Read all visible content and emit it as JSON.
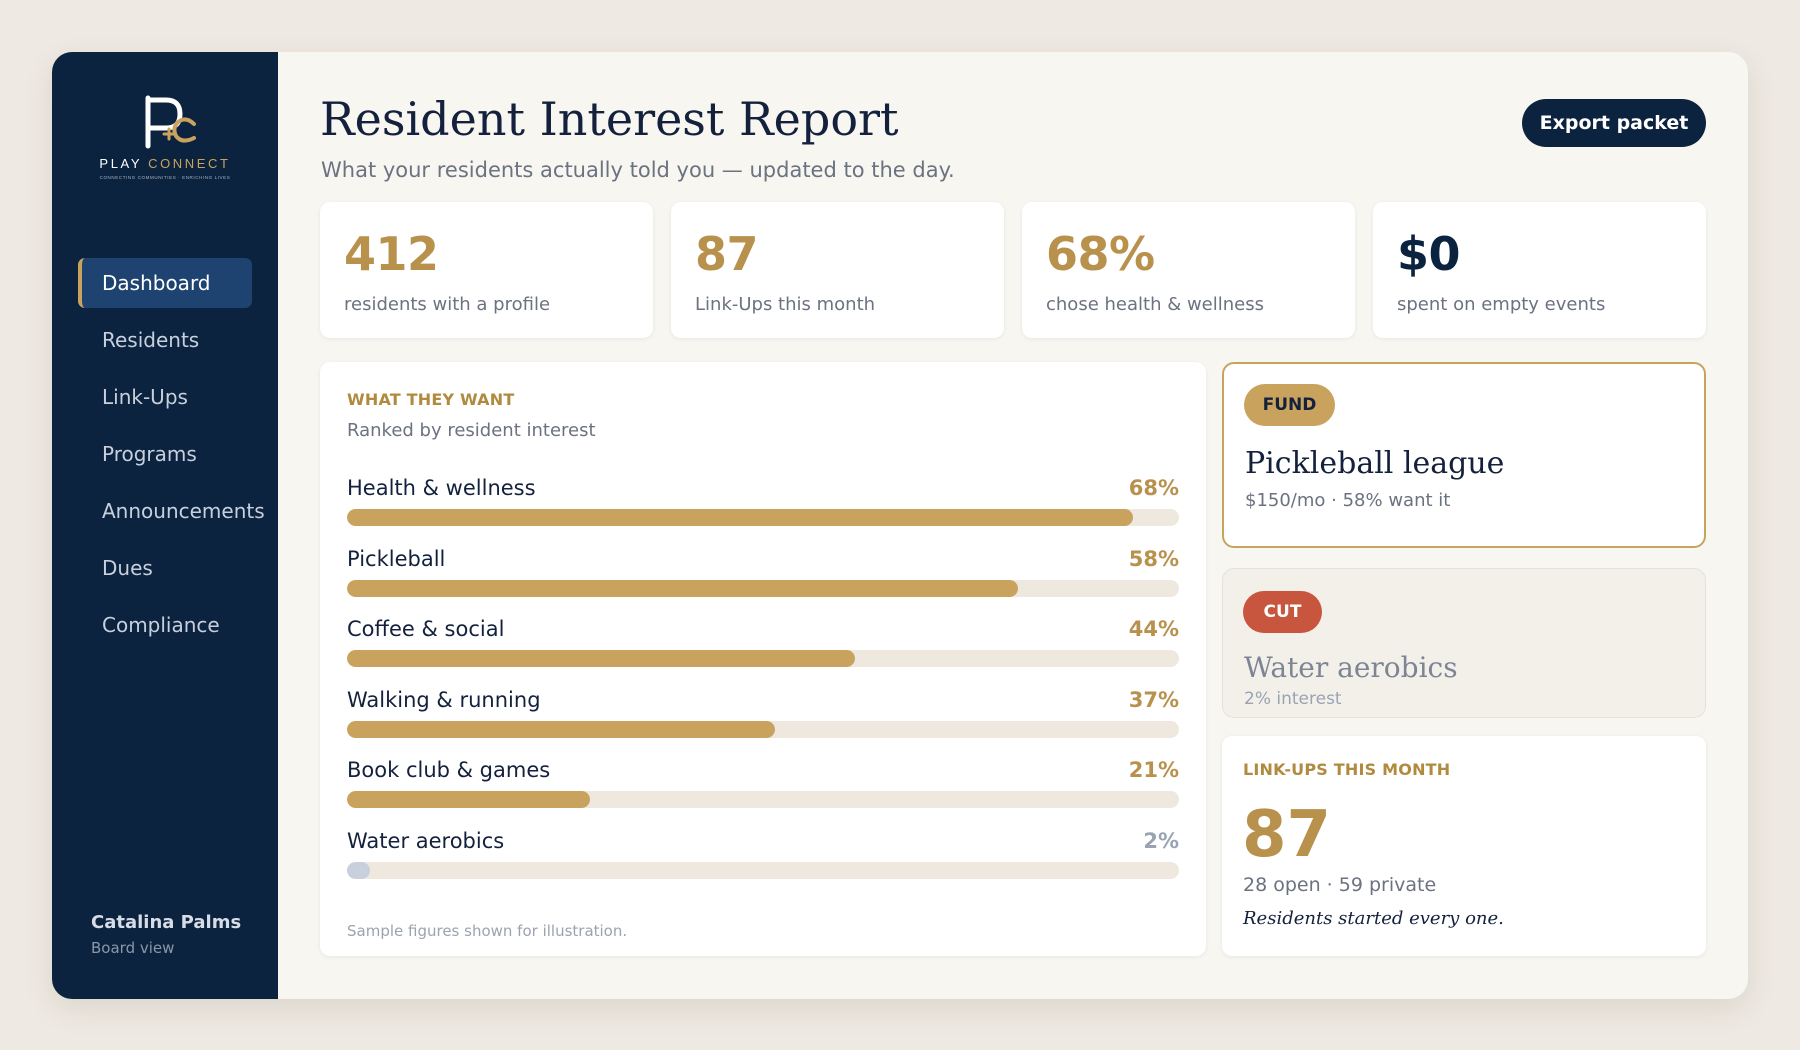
{
  "brand": {
    "word_left": "PLAY",
    "word_right": "CONNECT",
    "tagline": "CONNECTING COMMUNITIES · ENRICHING LIVES",
    "accent": "#c9a35d",
    "navy": "#0c2340"
  },
  "sidebar": {
    "items": [
      {
        "label": "Dashboard",
        "active": true
      },
      {
        "label": "Residents"
      },
      {
        "label": "Link-Ups"
      },
      {
        "label": "Programs"
      },
      {
        "label": "Announcements"
      },
      {
        "label": "Dues"
      },
      {
        "label": "Compliance"
      }
    ],
    "community": {
      "name": "Catalina Palms",
      "view": "Board view"
    }
  },
  "header": {
    "title": "Resident Interest Report",
    "subtitle": "What your residents actually told you — updated to the day.",
    "export_label": "Export packet"
  },
  "kpis": [
    {
      "value": "412",
      "label": "residents with a profile"
    },
    {
      "value": "87",
      "label": "Link-Ups this month"
    },
    {
      "value": "68%",
      "label": "chose health & wellness"
    },
    {
      "value": "$0",
      "label": "spent on empty events"
    }
  ],
  "interests": {
    "eyebrow": "WHAT THEY WANT",
    "subtitle": "Ranked by resident interest",
    "footnote": "Sample figures shown for illustration.",
    "items": [
      {
        "label": "Health & wellness",
        "pct_text": "68%",
        "value": 0.945
      },
      {
        "label": "Pickleball",
        "pct_text": "58%",
        "value": 0.806
      },
      {
        "label": "Coffee & social",
        "pct_text": "44%",
        "value": 0.611
      },
      {
        "label": "Walking & running",
        "pct_text": "37%",
        "value": 0.514
      },
      {
        "label": "Book club & games",
        "pct_text": "21%",
        "value": 0.292
      },
      {
        "label": "Water aerobics",
        "pct_text": "2%",
        "value": 0.028,
        "muted": true
      }
    ]
  },
  "fund_card": {
    "badge": "FUND",
    "title": "Pickleball league",
    "meta": "$150/mo · 58% want it"
  },
  "cut_card": {
    "badge": "CUT",
    "title": "Water aerobics",
    "meta": "2% interest"
  },
  "linkups": {
    "eyebrow": "LINK-UPS THIS MONTH",
    "count": "87",
    "split": "28 open · 59 private",
    "note": "Residents started every one."
  }
}
